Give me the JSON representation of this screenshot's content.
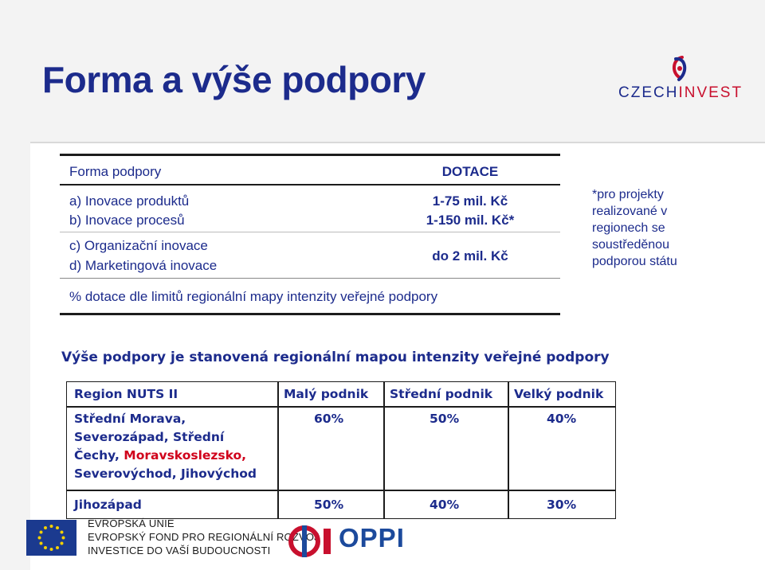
{
  "page": {
    "title": "Forma a výše podpory"
  },
  "logo": {
    "part1": "CZECH",
    "part2": "INVEST"
  },
  "support_table": {
    "header_left": "Forma podpory",
    "header_right": "DOTACE",
    "rows": [
      {
        "label": "a) Inovace produktů",
        "value": "1-75 mil. Kč"
      },
      {
        "label": "b) Inovace procesů",
        "value": "1-150 mil. Kč*"
      },
      {
        "label": "c) Organizační inovace",
        "value": ""
      },
      {
        "label": "d) Marketingová inovace",
        "value": "do 2 mil. Kč"
      }
    ],
    "footer": "% dotace dle limitů regionální mapy intenzity veřejné podpory"
  },
  "note": "*pro projekty realizované v regionech se soustředěnou podporou státu",
  "intensity": {
    "heading": "Výše podpory je stanovená regionální mapou intenzity veřejné podpory",
    "columns": [
      "Region NUTS II",
      "Malý podnik",
      "Střední podnik",
      "Velký podnik"
    ],
    "row1": {
      "region_line1": "Střední Morava,",
      "region_line2": "Severozápad, Střední",
      "region_line3a": "Čechy, ",
      "region_line3b": "Moravskoslezsko,",
      "region_line4": "Severovýchod, Jihovýchod",
      "small": "60%",
      "medium": "50%",
      "large": "40%"
    },
    "row2": {
      "region": "Jihozápad",
      "small": "50%",
      "medium": "40%",
      "large": "30%"
    },
    "highlight_color": "#d0021b"
  },
  "footer": {
    "eu_line1": "Evropská unie",
    "eu_line2": "Evropský fond pro regionální rozvoj",
    "eu_line3": "Investice do vaší budoucnosti",
    "oppi": "OPPI"
  },
  "colors": {
    "primary": "#1c2b8c",
    "accent": "#c8102e"
  }
}
